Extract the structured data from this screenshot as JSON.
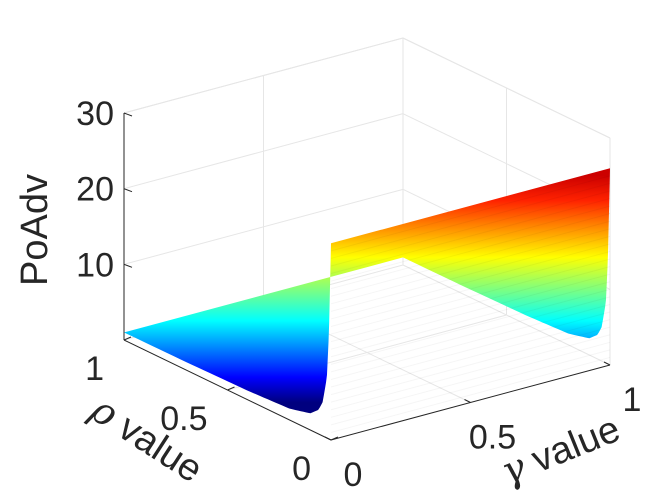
{
  "chart_data": {
    "type": "surface",
    "zlabel": "PoAdv",
    "xlabel": {
      "symbol": "γ",
      "text": " value"
    },
    "ylabel": {
      "symbol": "ρ",
      "text": " value"
    },
    "xlim": [
      0,
      1
    ],
    "ylim": [
      0,
      1
    ],
    "zlim": [
      0,
      30
    ],
    "x_ticks": [
      "0",
      "0.5",
      "1"
    ],
    "y_ticks": [
      "0",
      "0.5",
      "1"
    ],
    "z_ticks": [
      "10",
      "20",
      "30"
    ],
    "colormap": "jet",
    "surface": {
      "description_formula": "PoAdv grows steeply as rho approaches 0; roughly constant along gamma",
      "rho": [
        0.0,
        0.01,
        0.02,
        0.04,
        0.06,
        0.1,
        0.2,
        0.4,
        0.7,
        1.0
      ],
      "poadv": [
        26.0,
        14.0,
        8.0,
        4.5,
        3.2,
        2.2,
        1.5,
        1.2,
        1.05,
        1.0
      ]
    },
    "grid": true
  }
}
